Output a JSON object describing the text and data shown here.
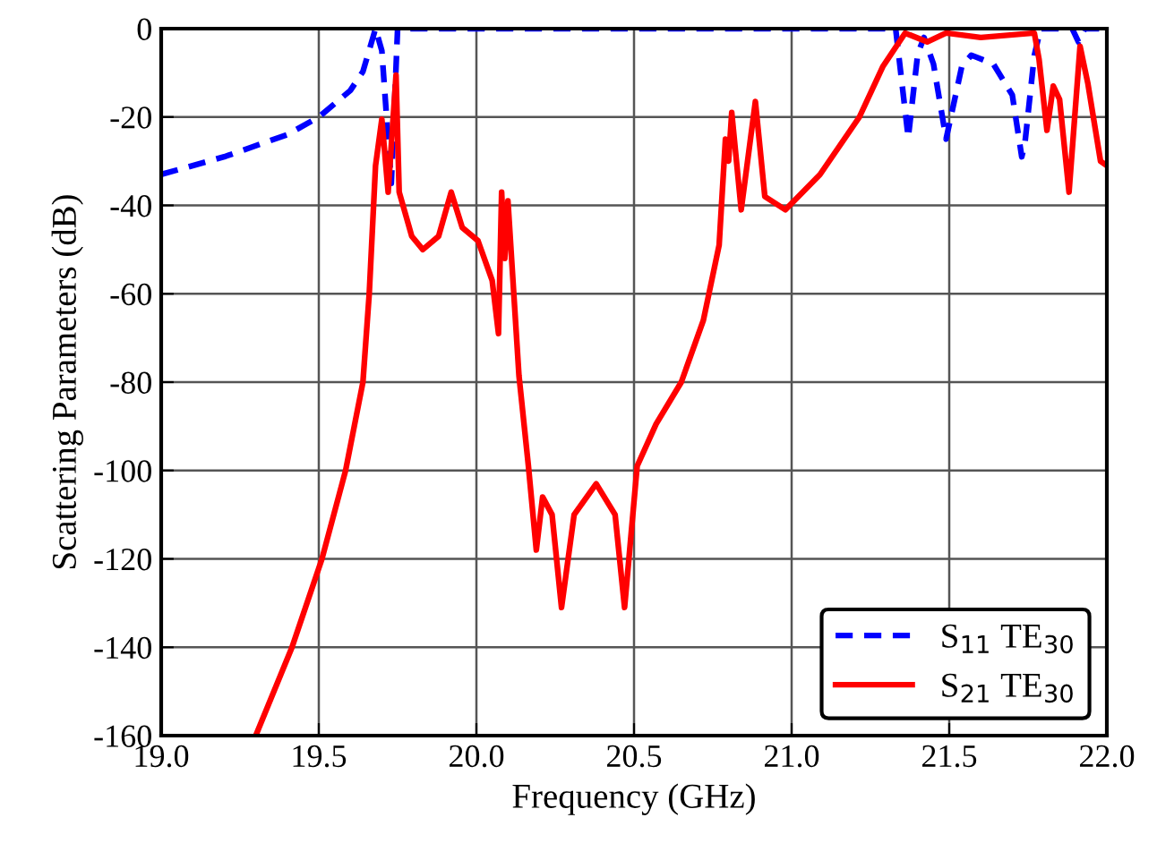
{
  "chart_data": {
    "type": "line",
    "xlabel": "Frequency (GHz)",
    "ylabel": "Scattering Parameters (dB)",
    "xlim": [
      19.0,
      22.0
    ],
    "ylim": [
      -160,
      0
    ],
    "xticks": [
      {
        "value": 19.0,
        "label": "19.0"
      },
      {
        "value": 19.5,
        "label": "19.5"
      },
      {
        "value": 20.0,
        "label": "20.0"
      },
      {
        "value": 20.5,
        "label": "20.5"
      },
      {
        "value": 21.0,
        "label": "21.0"
      },
      {
        "value": 21.5,
        "label": "21.5"
      },
      {
        "value": 22.0,
        "label": "22.0"
      }
    ],
    "yticks": [
      -160,
      -140,
      -120,
      -100,
      -80,
      -60,
      -40,
      -20,
      0
    ],
    "grid": true,
    "legend": "bottom right",
    "series": [
      {
        "name": "S$_{11}$ TE$_{30}$",
        "color": "#0000ff",
        "line_style": "dashed",
        "x": [
          19.0,
          19.2,
          19.4,
          19.5,
          19.6,
          19.64,
          19.68,
          19.7,
          19.72,
          19.73,
          19.75,
          20.0,
          20.5,
          21.0,
          21.33,
          21.37,
          21.4,
          21.42,
          21.45,
          21.49,
          21.54,
          21.57,
          21.64,
          21.7,
          21.73,
          21.74,
          21.77,
          21.79,
          21.89,
          21.91,
          21.93,
          22.0
        ],
        "values": [
          -33,
          -29,
          -24,
          -20,
          -14,
          -9.7,
          0,
          -5,
          -25,
          -35,
          0,
          0,
          0,
          0,
          0,
          -24.7,
          -5.7,
          -2,
          -8,
          -25,
          -8.5,
          -6,
          -8,
          -15,
          -29,
          -26,
          -6,
          0,
          0,
          -3,
          0,
          0
        ]
      },
      {
        "name": "S$_{21}$ TE$_{30}$",
        "color": "#ff0000",
        "line_style": "solid",
        "x": [
          19.3,
          19.415,
          19.51,
          19.585,
          19.64,
          19.66,
          19.68,
          19.7,
          19.72,
          19.745,
          19.755,
          19.795,
          19.83,
          19.88,
          19.92,
          19.955,
          20.005,
          20.05,
          20.07,
          20.08,
          20.09,
          20.1,
          20.135,
          20.165,
          20.19,
          20.21,
          20.24,
          20.27,
          20.31,
          20.38,
          20.44,
          20.47,
          20.51,
          20.57,
          20.65,
          20.72,
          20.77,
          20.79,
          20.8,
          20.81,
          20.84,
          20.885,
          20.915,
          20.98,
          21.09,
          21.215,
          21.29,
          21.36,
          21.43,
          21.49,
          21.6,
          21.77,
          21.785,
          21.81,
          21.83,
          21.85,
          21.88,
          21.915,
          21.94,
          21.98,
          22.0
        ],
        "values": [
          -160,
          -140,
          -120,
          -100,
          -80,
          -60,
          -31,
          -20.5,
          -37,
          -10.5,
          -37,
          -47,
          -50,
          -47,
          -37,
          -45,
          -48,
          -57,
          -69,
          -37,
          -52,
          -39,
          -78.5,
          -99,
          -118,
          -106,
          -110,
          -131,
          -110,
          -103,
          -110,
          -131,
          -99,
          -89.5,
          -80,
          -66,
          -49,
          -25,
          -30,
          -19,
          -41,
          -16.5,
          -38,
          -41,
          -33,
          -20,
          -8.5,
          -1,
          -3,
          -1,
          -2,
          -1,
          -7,
          -23,
          -13,
          -16,
          -37,
          -4,
          -12.5,
          -30,
          -31
        ]
      }
    ]
  }
}
